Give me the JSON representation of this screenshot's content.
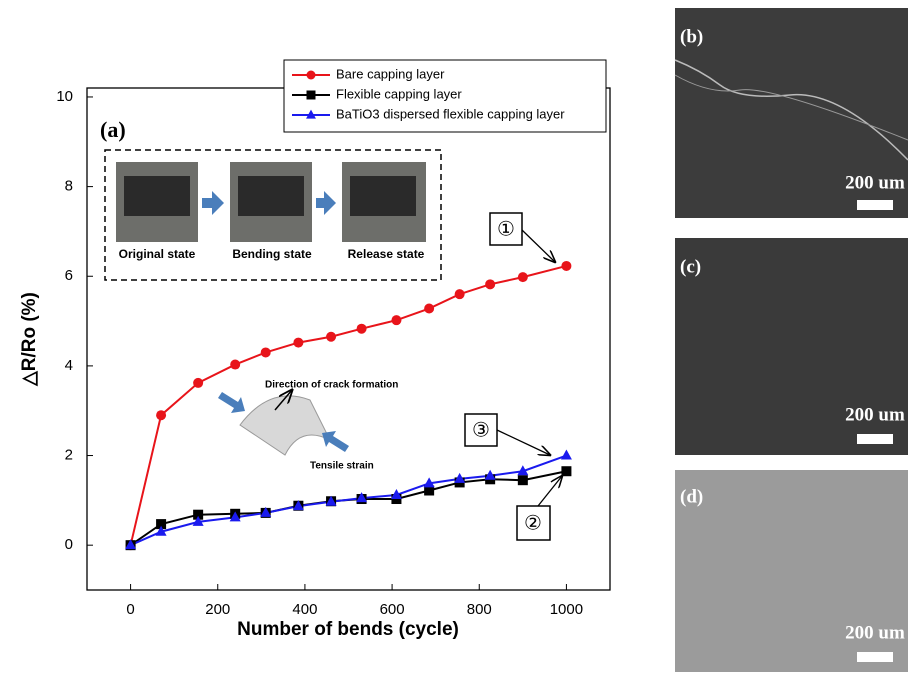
{
  "chart_data": {
    "type": "line",
    "panel_label": "(a)",
    "x_label": "Number of bends (cycle)",
    "y_label": "△R/Ro (%)",
    "x": [
      0,
      70,
      155,
      240,
      310,
      385,
      460,
      530,
      610,
      685,
      755,
      825,
      900,
      1000
    ],
    "series": [
      {
        "name": "Bare capping layer",
        "color": "#e8141a",
        "marker": "circle",
        "values": [
          0,
          2.9,
          3.62,
          4.03,
          4.3,
          4.52,
          4.65,
          4.83,
          5.02,
          5.28,
          5.6,
          5.82,
          5.98,
          6.23
        ]
      },
      {
        "name": "Flexible capping layer",
        "color": "#000000",
        "marker": "square",
        "values": [
          0,
          0.47,
          0.68,
          0.7,
          0.72,
          0.88,
          0.98,
          1.03,
          1.03,
          1.22,
          1.4,
          1.47,
          1.45,
          1.65
        ]
      },
      {
        "name": "BaTiO3 dispersed flexible capping layer",
        "color": "#1a1aee",
        "marker": "triangle",
        "values": [
          0,
          0.3,
          0.52,
          0.62,
          0.72,
          0.87,
          0.97,
          1.05,
          1.12,
          1.38,
          1.48,
          1.55,
          1.65,
          2.0
        ]
      }
    ],
    "xlim": [
      -100,
      1100
    ],
    "xticks": [
      0,
      200,
      400,
      600,
      800,
      1000
    ],
    "ylim": [
      -1,
      10.2
    ],
    "yticks": [
      0,
      2,
      4,
      6,
      8,
      10
    ],
    "legend": "top-right",
    "inset_labels": [
      "Original state",
      "Bending state",
      "Release state"
    ],
    "diagram_labels": [
      "Direction of crack formation",
      "Tensile strain"
    ],
    "callouts": [
      "①",
      "③",
      "②"
    ]
  },
  "panels": [
    {
      "label": "(b)",
      "scale": "200 um"
    },
    {
      "label": "(c)",
      "scale": "200 um"
    },
    {
      "label": "(d)",
      "scale": "200 um"
    }
  ]
}
